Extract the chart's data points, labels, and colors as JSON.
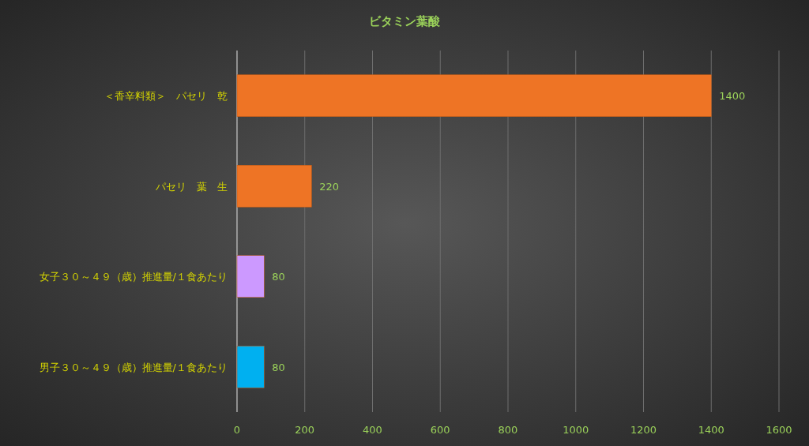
{
  "chart_data": {
    "type": "bar",
    "orientation": "horizontal",
    "title": "ビタミン葉酸",
    "categories": [
      "＜香辛料類＞　パセリ　乾",
      "パセリ　葉　生",
      "女子３０～４９（歳）推進量/１食あたり",
      "男子３０～４９（歳）推進量/１食あたり"
    ],
    "values": [
      1400,
      220,
      80,
      80
    ],
    "colors": [
      "#ee7425",
      "#ee7425",
      "#cc99ff",
      "#00b0f0"
    ],
    "xlim": [
      0,
      1600
    ],
    "xticks": [
      0,
      200,
      400,
      600,
      800,
      1000,
      1200,
      1400,
      1600
    ],
    "grid": "x",
    "data_labels": true
  }
}
